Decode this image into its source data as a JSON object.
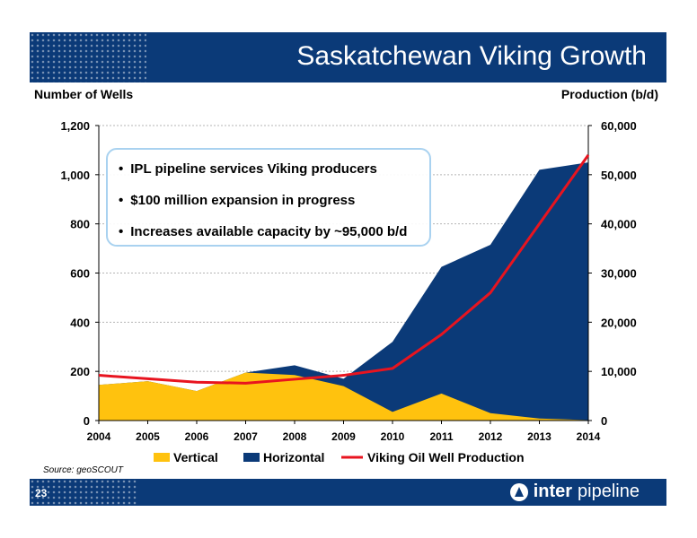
{
  "slide": {
    "title": "Saskatchewan Viking Growth",
    "page_number": "23",
    "source": "Source: geoSCOUT",
    "logo": {
      "bold": "inter",
      "regular": "pipeline",
      "icon": "inter-pipeline-logo-icon"
    },
    "callout": [
      "IPL pipeline services Viking producers",
      "$100 million expansion in progress",
      "Increases available capacity by ~95,000 b/d"
    ]
  },
  "colors": {
    "brand": "#0b3a78",
    "vertical": "#ffc20e",
    "horizontal": "#0b3a78",
    "production": "#e8141f"
  },
  "chart_data": {
    "type": "area",
    "title": "",
    "x": [
      2004,
      2005,
      2006,
      2007,
      2008,
      2009,
      2010,
      2011,
      2012,
      2013,
      2014
    ],
    "xticks": [
      "2004",
      "2005",
      "2006",
      "2007",
      "2008",
      "2009",
      "2010",
      "2011",
      "2012",
      "2013",
      "2014"
    ],
    "ylabel_left": "Number of Wells",
    "ylabel_right": "Production (b/d)",
    "ylim_left": [
      0,
      1200
    ],
    "ylim_right": [
      0,
      60000
    ],
    "yticks_left": [
      "0",
      "200",
      "400",
      "600",
      "800",
      "1,000",
      "1,200"
    ],
    "yticks_right": [
      "0",
      "10,000",
      "20,000",
      "30,000",
      "40,000",
      "50,000",
      "60,000"
    ],
    "grid": true,
    "legend_position": "bottom",
    "series": [
      {
        "name": "Vertical",
        "type": "area",
        "axis": "left",
        "values": [
          145,
          160,
          120,
          195,
          185,
          140,
          35,
          110,
          30,
          8,
          2
        ]
      },
      {
        "name": "Horizontal",
        "type": "area",
        "axis": "left",
        "stacked_total": [
          145,
          160,
          120,
          195,
          225,
          170,
          320,
          625,
          715,
          1020,
          1050
        ]
      },
      {
        "name": "Viking Oil Well Production",
        "type": "line",
        "axis": "right",
        "values": [
          9200,
          8500,
          7800,
          7600,
          8400,
          9200,
          10600,
          17500,
          26000,
          40000,
          54000
        ]
      }
    ]
  }
}
